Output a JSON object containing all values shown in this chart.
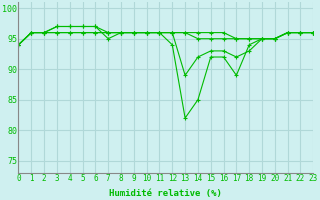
{
  "title": "",
  "xlabel": "Humidité relative (%)",
  "ylabel": "",
  "background_color": "#cff0f0",
  "grid_color": "#b0d8d8",
  "line_color": "#00bb00",
  "marker": "+",
  "xlim": [
    0,
    23
  ],
  "ylim": [
    73,
    101
  ],
  "yticks": [
    75,
    80,
    85,
    90,
    95,
    100
  ],
  "xticks": [
    0,
    1,
    2,
    3,
    4,
    5,
    6,
    7,
    8,
    9,
    10,
    11,
    12,
    13,
    14,
    15,
    16,
    17,
    18,
    19,
    20,
    21,
    22,
    23
  ],
  "series": [
    [
      94,
      96,
      96,
      97,
      97,
      97,
      97,
      95,
      96,
      96,
      96,
      96,
      94,
      82,
      85,
      92,
      92,
      89,
      94,
      95,
      95,
      96,
      96,
      96
    ],
    [
      94,
      96,
      96,
      97,
      97,
      97,
      97,
      96,
      96,
      96,
      96,
      96,
      96,
      89,
      92,
      93,
      93,
      92,
      93,
      95,
      95,
      96,
      96,
      96
    ],
    [
      94,
      96,
      96,
      96,
      96,
      96,
      96,
      96,
      96,
      96,
      96,
      96,
      96,
      96,
      96,
      96,
      96,
      95,
      95,
      95,
      95,
      96,
      96,
      96
    ],
    [
      94,
      96,
      96,
      96,
      96,
      96,
      96,
      96,
      96,
      96,
      96,
      96,
      96,
      96,
      95,
      95,
      95,
      95,
      95,
      95,
      95,
      96,
      96,
      96
    ]
  ]
}
